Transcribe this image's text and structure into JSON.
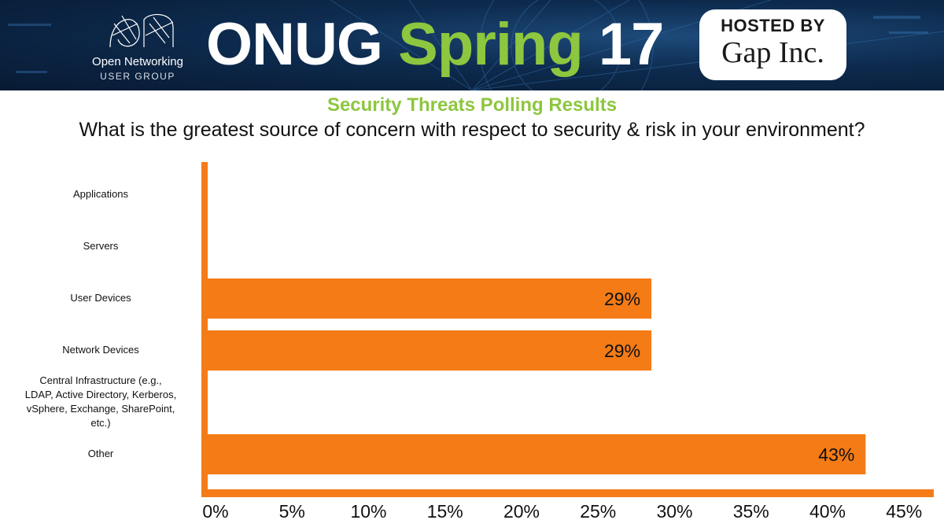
{
  "header": {
    "org_name": "Open Networking",
    "org_sub": "USER GROUP",
    "event_title_main": "ONUG",
    "event_title_accent": "Spring",
    "event_title_year": "17",
    "host_label": "HOSTED BY",
    "host_name": "Gap Inc."
  },
  "colors": {
    "bar": "#f47b16",
    "title_green": "#8dc63f",
    "banner_blue": "#0d2a4d"
  },
  "chart_data": {
    "type": "bar",
    "orientation": "horizontal",
    "title": "Security Threats Polling Results",
    "subtitle": "What is the greatest source of concern with respect to security & risk in your environment?",
    "categories": [
      "Applications",
      "Servers",
      "User Devices",
      "Network Devices",
      "Central Infrastructure (e.g., LDAP, Active Directory, Kerberos, vSphere, Exchange, SharePoint, etc.)",
      "Other"
    ],
    "values": [
      0,
      0,
      29,
      29,
      0,
      43
    ],
    "data_labels": [
      "",
      "",
      "29%",
      "29%",
      "",
      "43%"
    ],
    "xlim": [
      0,
      45
    ],
    "x_ticks": [
      "0%",
      "5%",
      "10%",
      "15%",
      "20%",
      "25%",
      "30%",
      "35%",
      "40%",
      "45%"
    ],
    "grid": false,
    "legend": "none"
  }
}
